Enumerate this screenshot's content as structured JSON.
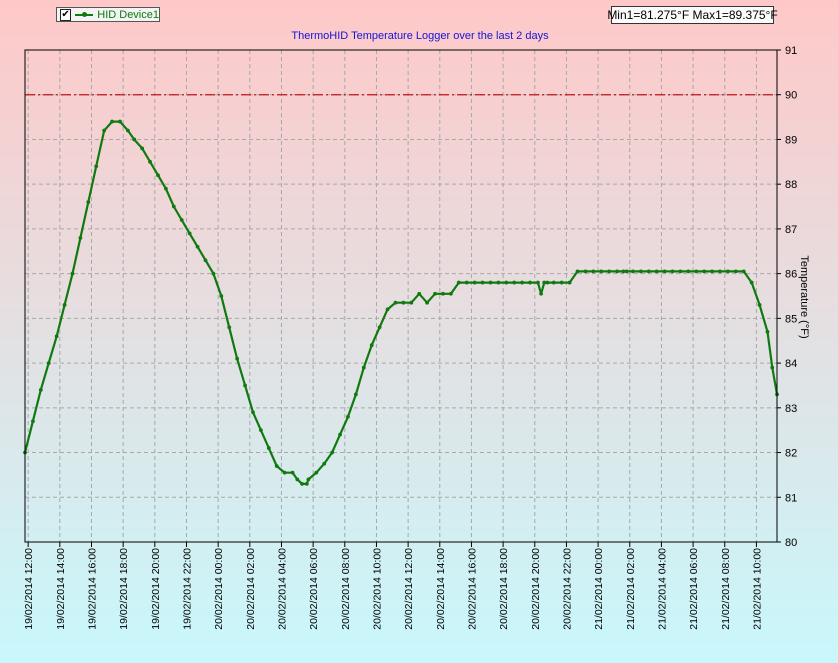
{
  "legend": {
    "checked": "✔",
    "series_label": "HID Device1"
  },
  "minmax": "Min1=81.275°F Max1=89.375°F",
  "chart_data": {
    "type": "line",
    "title": "ThermoHID Temperature Logger over the last 2 days",
    "xlabel": "",
    "ylabel": "Temperature (°F)",
    "ylim": [
      80,
      91
    ],
    "yticks": [
      80,
      81,
      82,
      83,
      84,
      85,
      86,
      87,
      88,
      89,
      90,
      91
    ],
    "xlim_hours": [
      11.8,
      59.3
    ],
    "xtick_labels": [
      "19/02/2014 12:00",
      "19/02/2014 14:00",
      "19/02/2014 16:00",
      "19/02/2014 18:00",
      "19/02/2014 20:00",
      "19/02/2014 22:00",
      "20/02/2014 00:00",
      "20/02/2014 02:00",
      "20/02/2014 04:00",
      "20/02/2014 06:00",
      "20/02/2014 08:00",
      "20/02/2014 10:00",
      "20/02/2014 12:00",
      "20/02/2014 14:00",
      "20/02/2014 16:00",
      "20/02/2014 18:00",
      "20/02/2014 20:00",
      "20/02/2014 22:00",
      "21/02/2014 00:00",
      "21/02/2014 02:00",
      "21/02/2014 04:00",
      "21/02/2014 06:00",
      "21/02/2014 08:00",
      "21/02/2014 10:00"
    ],
    "threshold": 90,
    "grid": true,
    "legend_position": "top-left",
    "colors": {
      "line": "#107a10",
      "threshold": "#c81414",
      "bg_top": "#ffc8c8",
      "bg_bottom": "#c8f8fc",
      "grid": "#a8a8a8"
    },
    "series": [
      {
        "name": "HID Device1",
        "x": [
          11.8,
          12.3,
          12.8,
          13.3,
          13.8,
          14.3,
          14.8,
          15.3,
          15.8,
          16.3,
          16.8,
          17.3,
          17.8,
          18.3,
          18.7,
          19.2,
          19.7,
          20.2,
          20.7,
          21.2,
          21.7,
          22.2,
          22.7,
          23.2,
          23.7,
          24.2,
          24.7,
          25.2,
          25.7,
          26.2,
          26.7,
          27.2,
          27.7,
          28.2,
          28.7,
          29.0,
          29.3,
          29.6,
          29.7,
          30.2,
          30.7,
          31.2,
          31.7,
          32.2,
          32.7,
          33.2,
          33.7,
          34.2,
          34.7,
          35.2,
          35.7,
          36.2,
          36.7,
          37.2,
          37.7,
          38.2,
          38.7,
          39.2,
          39.7,
          40.2,
          40.7,
          41.2,
          41.7,
          42.2,
          42.7,
          43.2,
          43.7,
          44.2,
          44.4,
          44.6,
          44.8,
          45.2,
          45.7,
          46.2,
          46.7,
          47.2,
          47.7,
          48.2,
          48.7,
          49.2,
          49.6,
          49.8,
          50.2,
          50.7,
          51.2,
          51.7,
          52.2,
          52.7,
          53.2,
          53.7,
          54.2,
          54.7,
          55.2,
          55.7,
          56.2,
          56.7,
          57.2,
          57.7,
          58.2,
          58.7,
          59.0,
          59.3
        ],
        "y": [
          82.0,
          82.7,
          83.4,
          84.0,
          84.6,
          85.3,
          86.0,
          86.8,
          87.6,
          88.4,
          89.2,
          89.4,
          89.4,
          89.2,
          89.0,
          88.8,
          88.5,
          88.2,
          87.9,
          87.5,
          87.2,
          86.9,
          86.6,
          86.3,
          86.0,
          85.5,
          84.8,
          84.1,
          83.5,
          82.9,
          82.5,
          82.1,
          81.7,
          81.55,
          81.55,
          81.4,
          81.3,
          81.3,
          81.4,
          81.55,
          81.75,
          82.0,
          82.4,
          82.8,
          83.3,
          83.9,
          84.4,
          84.8,
          85.2,
          85.35,
          85.35,
          85.35,
          85.55,
          85.35,
          85.55,
          85.55,
          85.55,
          85.8,
          85.8,
          85.8,
          85.8,
          85.8,
          85.8,
          85.8,
          85.8,
          85.8,
          85.8,
          85.8,
          85.55,
          85.8,
          85.8,
          85.8,
          85.8,
          85.8,
          86.05,
          86.05,
          86.05,
          86.05,
          86.05,
          86.05,
          86.05,
          86.05,
          86.05,
          86.05,
          86.05,
          86.05,
          86.05,
          86.05,
          86.05,
          86.05,
          86.05,
          86.05,
          86.05,
          86.05,
          86.05,
          86.05,
          86.05,
          85.8,
          85.3,
          84.7,
          83.9,
          83.3
        ]
      }
    ]
  }
}
